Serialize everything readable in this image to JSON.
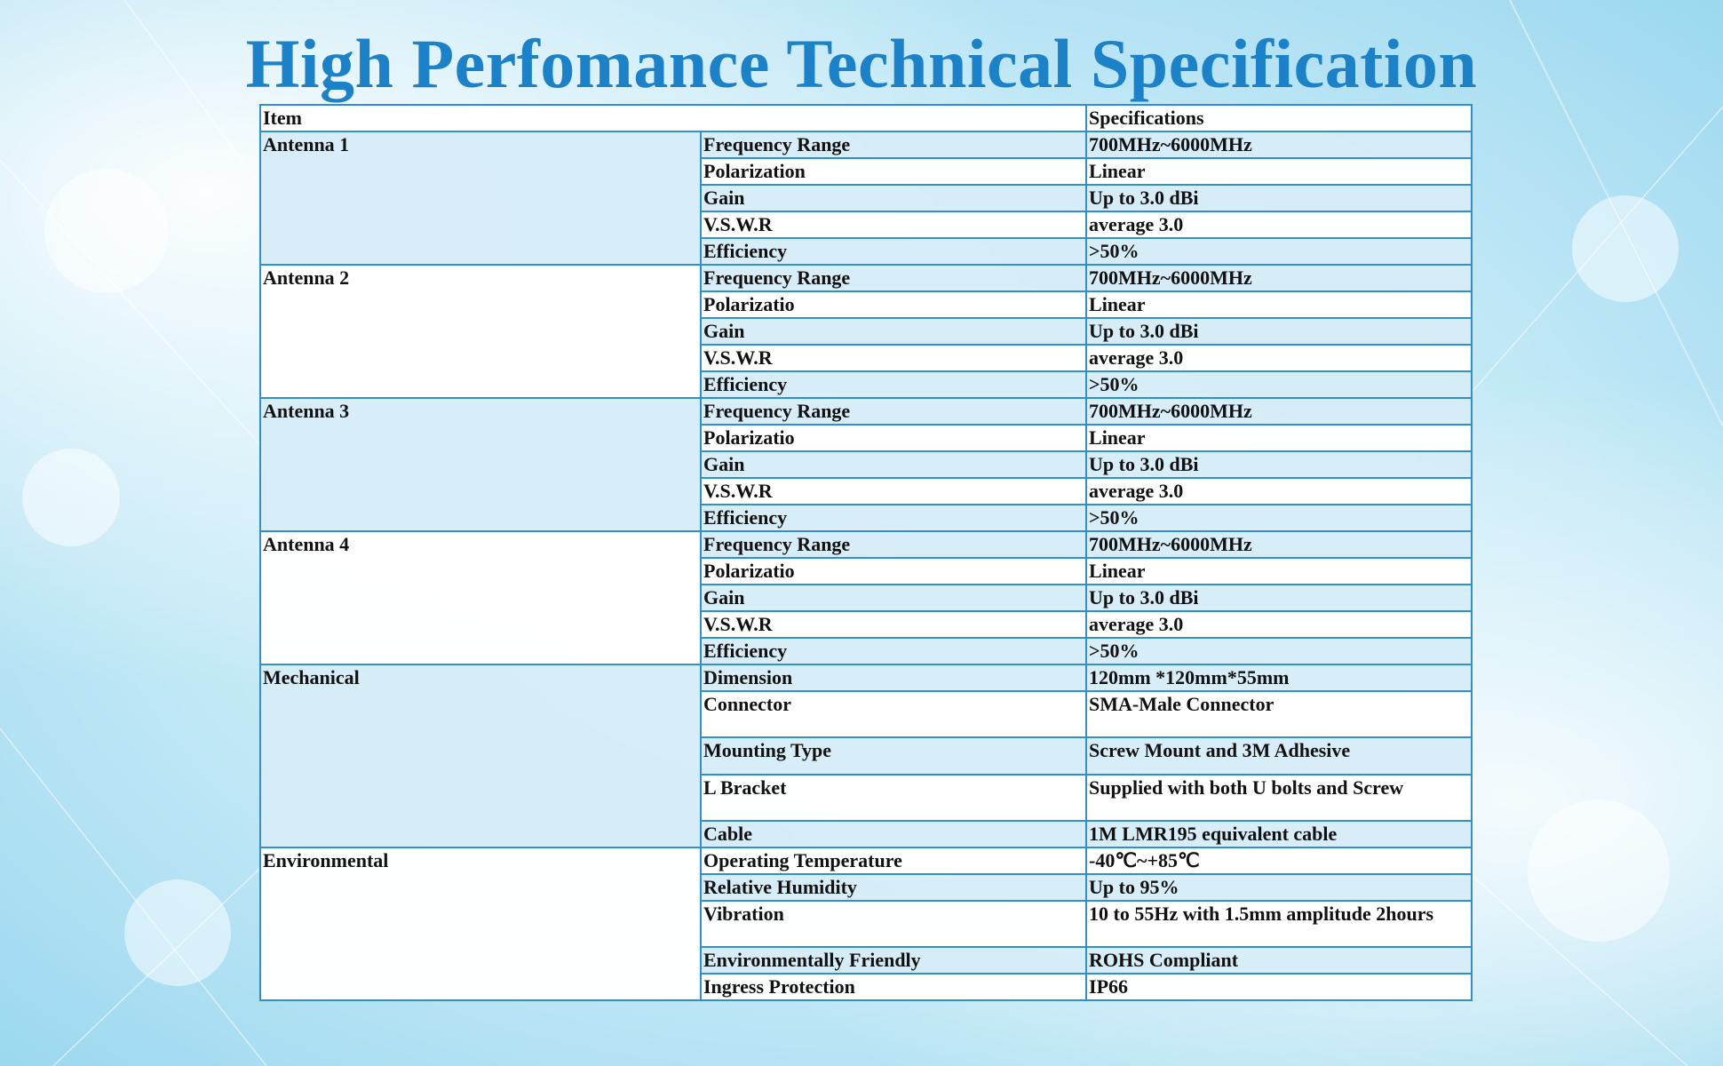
{
  "title": "High Perfomance Technical Specification",
  "colors": {
    "title": "#1b82c9",
    "border": "#2f8fcf",
    "shaded_row": "#d6ecf8",
    "white_row": "#ffffff",
    "background": "#bfe7f6"
  },
  "header": {
    "item": "Item",
    "specifications": "Specifications"
  },
  "groups": [
    {
      "name": "Antenna 1",
      "rows": [
        {
          "param": "Frequency Range",
          "value": "700MHz~6000MHz"
        },
        {
          "param": "Polarization",
          "value": "Linear"
        },
        {
          "param": "Gain",
          "value": "Up to 3.0 dBi"
        },
        {
          "param": "V.S.W.R",
          "value": "average 3.0"
        },
        {
          "param": "Efficiency",
          "value": ">50%"
        }
      ]
    },
    {
      "name": "Antenna 2",
      "rows": [
        {
          "param": "Frequency Range",
          "value": "700MHz~6000MHz"
        },
        {
          "param": "Polarizatio",
          "value": "Linear"
        },
        {
          "param": "Gain",
          "value": "Up to 3.0 dBi"
        },
        {
          "param": "V.S.W.R",
          "value": "average 3.0"
        },
        {
          "param": "Efficiency",
          "value": ">50%"
        }
      ]
    },
    {
      "name": "Antenna 3",
      "rows": [
        {
          "param": "Frequency Range",
          "value": "700MHz~6000MHz"
        },
        {
          "param": "Polarizatio",
          "value": "Linear"
        },
        {
          "param": "Gain",
          "value": "Up to 3.0 dBi"
        },
        {
          "param": "V.S.W.R",
          "value": "average 3.0"
        },
        {
          "param": "Efficiency",
          "value": ">50%"
        }
      ]
    },
    {
      "name": "Antenna 4",
      "rows": [
        {
          "param": "Frequency Range",
          "value": "700MHz~6000MHz"
        },
        {
          "param": "Polarizatio",
          "value": "Linear"
        },
        {
          "param": "Gain",
          "value": "Up to 3.0 dBi"
        },
        {
          "param": "V.S.W.R",
          "value": "average 3.0"
        },
        {
          "param": "Efficiency",
          "value": ">50%"
        }
      ]
    },
    {
      "name": "Mechanical",
      "rows": [
        {
          "param": "Dimension",
          "value": "120mm *120mm*55mm"
        },
        {
          "param": "Connector",
          "value": "SMA-Male Connector"
        },
        {
          "param": "Mounting Type",
          "value": "Screw Mount and 3M Adhesive"
        },
        {
          "param": "L Bracket",
          "value": "Supplied with both U bolts and Screw"
        },
        {
          "param": "Cable",
          "value": "1M LMR195 equivalent cable"
        }
      ]
    },
    {
      "name": "Environmental",
      "rows": [
        {
          "param": "Operating Temperature",
          "value": "-40℃~+85℃"
        },
        {
          "param": "Relative Humidity",
          "value": "Up to 95%"
        },
        {
          "param": "Vibration",
          "value": "10 to 55Hz with 1.5mm amplitude 2hours"
        },
        {
          "param": "Environmentally Friendly",
          "value": "ROHS Compliant"
        },
        {
          "param": "Ingress Protection",
          "value": "IP66"
        }
      ]
    }
  ]
}
